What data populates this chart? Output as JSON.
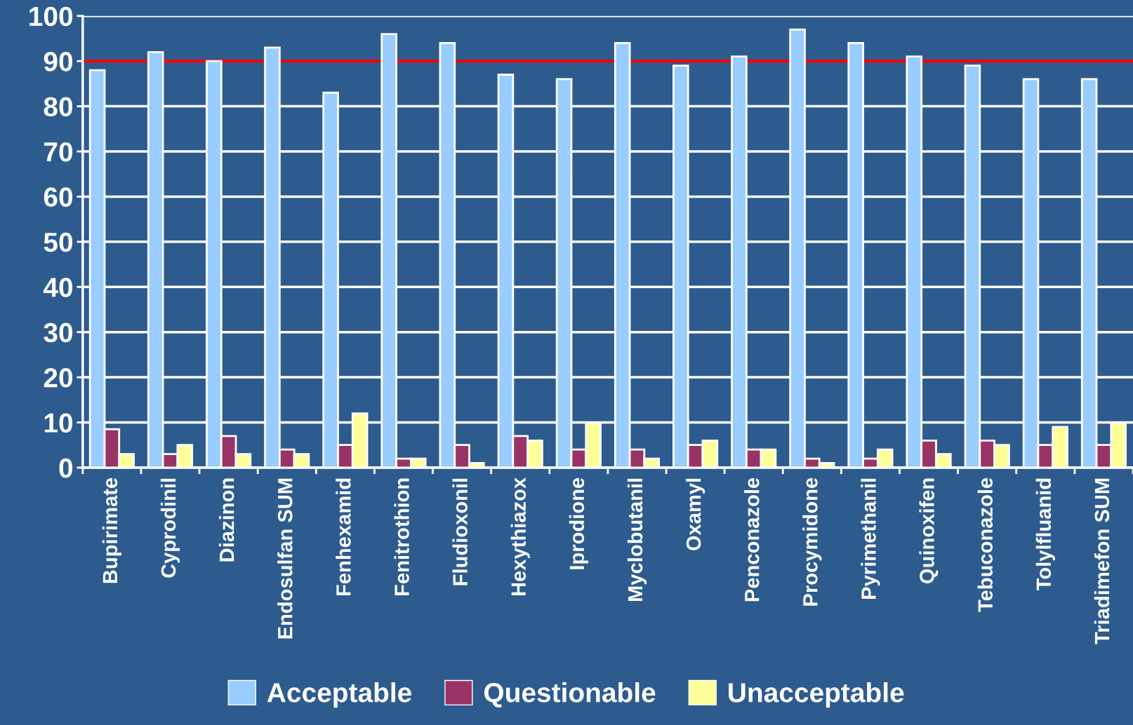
{
  "chart_data": {
    "type": "bar",
    "categories": [
      "Bupirimate",
      "Cyprodinil",
      "Diazinon",
      "Endosulfan SUM",
      "Fenhexamid",
      "Fenitrothion",
      "Fludioxonil",
      "Hexythiazox",
      "Iprodione",
      "Myclobutanil",
      "Oxamyl",
      "Penconazole",
      "Procymidone",
      "Pyrimethanil",
      "Quinoxifen",
      "Tebuconazole",
      "Tolylfluanid",
      "Triadimefon SUM"
    ],
    "series": [
      {
        "name": "Acceptable",
        "color": "#99ccff",
        "values": [
          88,
          92,
          90,
          93,
          83,
          96,
          94,
          87,
          86,
          94,
          89,
          91,
          97,
          94,
          91,
          89,
          86,
          86
        ]
      },
      {
        "name": "Questionable",
        "color": "#993366",
        "values": [
          8.5,
          3,
          7,
          4,
          5,
          2,
          5,
          7,
          4,
          4,
          5,
          4,
          2,
          2,
          6,
          6,
          5,
          5
        ]
      },
      {
        "name": "Unacceptable",
        "color": "#ffff99",
        "values": [
          3,
          5,
          3,
          3,
          12,
          2,
          1,
          6,
          10,
          2,
          6,
          4,
          1,
          4,
          3,
          5,
          9,
          10
        ]
      }
    ],
    "ylim": [
      0,
      100
    ],
    "yticks": [
      0,
      10,
      20,
      30,
      40,
      50,
      60,
      70,
      80,
      90,
      100
    ],
    "grid": "y",
    "legend": "bottom",
    "ref_lines": [
      {
        "axis": "y",
        "value": 90,
        "color": "#ff0000"
      }
    ]
  }
}
